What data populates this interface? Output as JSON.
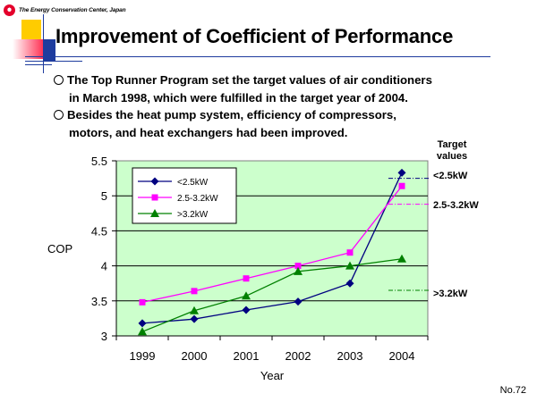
{
  "header": {
    "org_name": "The Energy Conservation Center, Japan",
    "title": "Improvement of Coefficient of Performance"
  },
  "bullets": [
    {
      "line1": "The Top Runner Program set the target values of air conditioners",
      "line2": "in March 1998, which were fulfilled in the target year of 2004."
    },
    {
      "line1": "Besides the heat pump system, efficiency of compressors,",
      "line2": "motors, and heat exchangers had been improved."
    }
  ],
  "slide_number": "No.72",
  "colors": {
    "plot_bg": "#ccffcc",
    "series_lt25": "#000080",
    "series_25_32": "#ff00ff",
    "series_gt32": "#008000"
  },
  "chart_data": {
    "type": "line",
    "title": "",
    "xlabel": "Year",
    "ylabel": "COP",
    "categories": [
      "1999",
      "2000",
      "2001",
      "2002",
      "2003",
      "2004"
    ],
    "ylim": [
      3,
      5.5
    ],
    "yticks": [
      "3",
      "3.5",
      "4",
      "4.5",
      "5",
      "5.5"
    ],
    "grid": true,
    "legend_position": "top-left",
    "series": [
      {
        "name": "<2.5kW",
        "marker": "diamond",
        "color": "#000080",
        "values": [
          3.18,
          3.24,
          3.37,
          3.49,
          3.75,
          5.33
        ]
      },
      {
        "name": "2.5-3.2kW",
        "marker": "square",
        "color": "#ff00ff",
        "values": [
          3.48,
          3.64,
          3.82,
          4.0,
          4.19,
          5.14
        ]
      },
      {
        "name": ">3.2kW",
        "marker": "triangle",
        "color": "#008000",
        "values": [
          3.06,
          3.36,
          3.57,
          3.92,
          4.0,
          4.1
        ]
      }
    ],
    "targets": {
      "header": [
        "Target",
        "values"
      ],
      "items": [
        {
          "label": "<2.5kW",
          "value": 5.25,
          "color": "#000080"
        },
        {
          "label": "2.5-3.2kW",
          "value": 4.88,
          "color": "#ff00ff"
        },
        {
          "label": ">3.2kW",
          "value": 3.65,
          "color": "#008000"
        }
      ]
    }
  }
}
